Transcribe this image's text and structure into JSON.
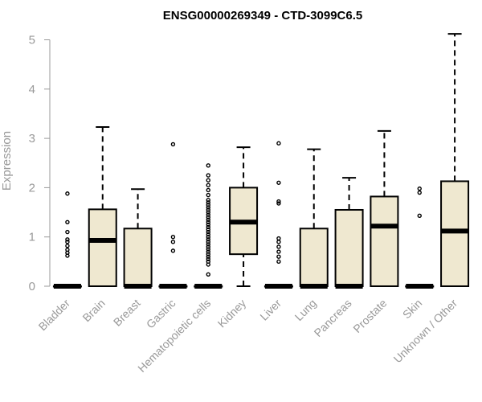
{
  "chart_data": {
    "type": "boxplot",
    "title": "ENSG00000269349 - CTD-3099C6.5",
    "ylabel": "Expression",
    "xlabel": "",
    "ylim": [
      0,
      5.1
    ],
    "yticks": [
      "0",
      "1",
      "2",
      "3",
      "4",
      "5"
    ],
    "box_color": "#efe8d0",
    "categories": [
      "Bladder",
      "Brain",
      "Breast",
      "Gastric",
      "Hematopoietic cells",
      "Kidney",
      "Liver",
      "Lung",
      "Pancreas",
      "Prostate",
      "Skin",
      "Unknown / Other"
    ],
    "boxes": [
      {
        "q1": 0,
        "median": 0,
        "q3": 0,
        "whisker_low": 0,
        "whisker_high": 0,
        "outliers": [
          0.62,
          0.68,
          0.74,
          0.82,
          0.9,
          0.95,
          1.1,
          1.3,
          1.88
        ]
      },
      {
        "q1": 0,
        "median": 0.93,
        "q3": 1.56,
        "whisker_low": 0,
        "whisker_high": 3.23,
        "outliers": []
      },
      {
        "q1": 0,
        "median": 0,
        "q3": 1.17,
        "whisker_low": 0,
        "whisker_high": 1.97,
        "outliers": []
      },
      {
        "q1": 0,
        "median": 0,
        "q3": 0,
        "whisker_low": 0,
        "whisker_high": 0,
        "outliers": [
          0.72,
          0.9,
          1.0,
          2.88
        ]
      },
      {
        "q1": 0,
        "median": 0,
        "q3": 0,
        "whisker_low": 0,
        "whisker_high": 0,
        "outliers": [
          0.24,
          0.44,
          0.5,
          0.55,
          0.6,
          0.65,
          0.7,
          0.75,
          0.8,
          0.85,
          0.9,
          0.95,
          1.0,
          1.05,
          1.1,
          1.15,
          1.2,
          1.25,
          1.3,
          1.35,
          1.4,
          1.45,
          1.5,
          1.55,
          1.6,
          1.65,
          1.7,
          1.75,
          1.85,
          1.95,
          2.05,
          2.15,
          2.25,
          2.45
        ]
      },
      {
        "q1": 0.65,
        "median": 1.3,
        "q3": 2.0,
        "whisker_low": 0,
        "whisker_high": 2.82,
        "outliers": []
      },
      {
        "q1": 0,
        "median": 0,
        "q3": 0,
        "whisker_low": 0,
        "whisker_high": 0,
        "outliers": [
          0.5,
          0.6,
          0.7,
          0.8,
          0.9,
          0.97,
          1.68,
          1.72,
          2.1,
          2.9
        ]
      },
      {
        "q1": 0,
        "median": 0,
        "q3": 1.17,
        "whisker_low": 0,
        "whisker_high": 2.78,
        "outliers": []
      },
      {
        "q1": 0,
        "median": 0,
        "q3": 1.55,
        "whisker_low": 0,
        "whisker_high": 2.2,
        "outliers": []
      },
      {
        "q1": 0,
        "median": 1.22,
        "q3": 1.82,
        "whisker_low": 0,
        "whisker_high": 3.15,
        "outliers": []
      },
      {
        "q1": 0,
        "median": 0,
        "q3": 0,
        "whisker_low": 0,
        "whisker_high": 0,
        "outliers": [
          1.43,
          1.9,
          1.98
        ]
      },
      {
        "q1": 0,
        "median": 1.12,
        "q3": 2.13,
        "whisker_low": 0,
        "whisker_high": 5.12,
        "outliers": []
      }
    ]
  }
}
